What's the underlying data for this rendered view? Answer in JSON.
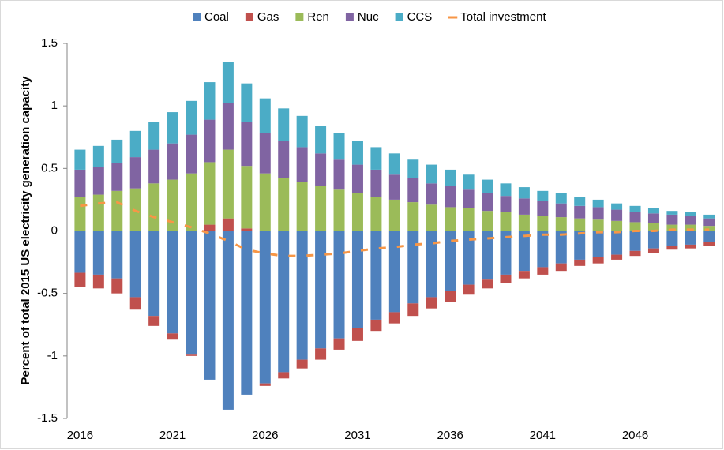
{
  "chart_data": {
    "type": "bar",
    "ylabel": "Percent of total 2015 US electricity generation capacity",
    "x": [
      2016,
      2017,
      2018,
      2019,
      2020,
      2021,
      2022,
      2023,
      2024,
      2025,
      2026,
      2027,
      2028,
      2029,
      2030,
      2031,
      2032,
      2033,
      2034,
      2035,
      2036,
      2037,
      2038,
      2039,
      2040,
      2041,
      2042,
      2043,
      2044,
      2045,
      2046,
      2047,
      2048,
      2049,
      2050
    ],
    "xlim": [
      2015.3,
      2050.5
    ],
    "xticks": [
      2016,
      2021,
      2026,
      2031,
      2036,
      2041,
      2046
    ],
    "ylim": [
      -1.5,
      1.5
    ],
    "yticks": [
      1.5,
      1,
      0.5,
      0,
      -0.5,
      -1,
      -1.5
    ],
    "stacked": true,
    "series": [
      {
        "name": "Coal",
        "color": "#4f81bd",
        "values": [
          -0.335,
          -0.35,
          -0.38,
          -0.53,
          -0.68,
          -0.82,
          -0.99,
          -1.19,
          -1.43,
          -1.31,
          -1.22,
          -1.13,
          -1.03,
          -0.94,
          -0.86,
          -0.78,
          -0.71,
          -0.65,
          -0.58,
          -0.53,
          -0.48,
          -0.43,
          -0.39,
          -0.35,
          -0.32,
          -0.29,
          -0.26,
          -0.23,
          -0.21,
          -0.19,
          -0.16,
          -0.14,
          -0.12,
          -0.11,
          -0.09
        ]
      },
      {
        "name": "Gas",
        "color": "#c0504d",
        "values": [
          -0.115,
          -0.11,
          -0.12,
          -0.1,
          -0.08,
          -0.05,
          -0.01,
          0.05,
          0.1,
          0.02,
          -0.02,
          -0.05,
          -0.07,
          -0.09,
          -0.09,
          -0.1,
          -0.09,
          -0.09,
          -0.1,
          -0.09,
          -0.09,
          -0.08,
          -0.07,
          -0.07,
          -0.06,
          -0.06,
          -0.06,
          -0.05,
          -0.05,
          -0.04,
          -0.04,
          -0.04,
          -0.03,
          -0.03,
          -0.03
        ]
      },
      {
        "name": "Ren",
        "color": "#9bbb59",
        "values": [
          0.27,
          0.29,
          0.32,
          0.34,
          0.38,
          0.41,
          0.46,
          0.5,
          0.55,
          0.5,
          0.46,
          0.42,
          0.39,
          0.36,
          0.33,
          0.3,
          0.27,
          0.25,
          0.23,
          0.21,
          0.19,
          0.18,
          0.16,
          0.15,
          0.13,
          0.12,
          0.11,
          0.1,
          0.09,
          0.08,
          0.07,
          0.06,
          0.05,
          0.05,
          0.04
        ]
      },
      {
        "name": "Nuc",
        "color": "#8064a2",
        "values": [
          0.22,
          0.22,
          0.22,
          0.25,
          0.27,
          0.29,
          0.31,
          0.34,
          0.37,
          0.35,
          0.32,
          0.3,
          0.28,
          0.26,
          0.24,
          0.23,
          0.22,
          0.2,
          0.19,
          0.17,
          0.17,
          0.15,
          0.14,
          0.13,
          0.13,
          0.12,
          0.11,
          0.1,
          0.1,
          0.09,
          0.08,
          0.08,
          0.08,
          0.07,
          0.06
        ]
      },
      {
        "name": "CCS",
        "color": "#4bacc6",
        "values": [
          0.16,
          0.17,
          0.19,
          0.21,
          0.22,
          0.25,
          0.27,
          0.3,
          0.33,
          0.31,
          0.28,
          0.26,
          0.25,
          0.22,
          0.21,
          0.19,
          0.18,
          0.17,
          0.15,
          0.15,
          0.13,
          0.12,
          0.11,
          0.1,
          0.09,
          0.08,
          0.08,
          0.07,
          0.06,
          0.05,
          0.05,
          0.04,
          0.03,
          0.03,
          0.03
        ]
      },
      {
        "name": "Total investment",
        "type": "line",
        "color": "#f79646",
        "values": [
          0.2,
          0.22,
          0.23,
          0.16,
          0.11,
          0.07,
          0.03,
          -0.02,
          -0.08,
          -0.15,
          -0.18,
          -0.2,
          -0.2,
          -0.19,
          -0.18,
          -0.16,
          -0.14,
          -0.13,
          -0.11,
          -0.1,
          -0.08,
          -0.07,
          -0.06,
          -0.05,
          -0.04,
          -0.03,
          -0.03,
          -0.02,
          -0.01,
          -0.01,
          0,
          0,
          0.01,
          0.01,
          0.01
        ]
      }
    ]
  }
}
